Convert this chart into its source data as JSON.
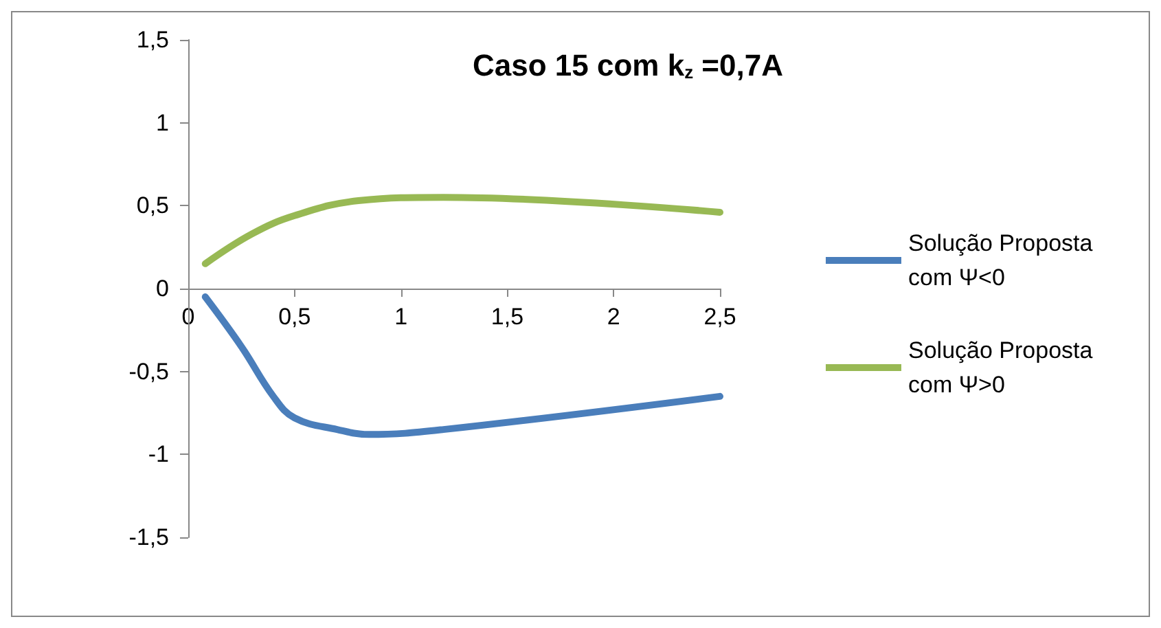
{
  "chart_data": {
    "type": "line",
    "title": "Caso 15 com k$_{z}$ =0,7A",
    "xlim": [
      0,
      2.5
    ],
    "xticks": [
      0,
      {
        "value": 0.5,
        "label": "0,5"
      },
      1,
      {
        "value": 1.5,
        "label": "1,5"
      },
      2,
      {
        "value": 2.5,
        "label": "2,5"
      }
    ],
    "ylim": [
      -1.5,
      1.5
    ],
    "yticks": [
      {
        "value": -1.5,
        "label": "-1,5"
      },
      -1,
      {
        "value": -0.5,
        "label": "-0,5"
      },
      0,
      {
        "value": 0.5,
        "label": "0,5"
      },
      1,
      {
        "value": 1.5,
        "label": "1,5"
      }
    ],
    "legend": "right",
    "marker": "none",
    "line_style": "solid",
    "series": [
      {
        "name": "Solução Proposta com Ψ<0",
        "color": "#4a7ebb",
        "x": [
          0.08,
          0.25,
          0.4,
          0.5,
          0.7,
          0.85,
          1.2,
          2.5
        ],
        "values": [
          -0.05,
          -0.35,
          -0.65,
          -0.78,
          -0.85,
          -0.88,
          -0.85,
          -0.65
        ]
      },
      {
        "name": "Solução Proposta com Ψ>0",
        "color": "#98b954",
        "x": [
          0.08,
          0.3,
          0.5,
          0.8,
          1.2,
          2.5
        ],
        "values": [
          0.15,
          0.33,
          0.44,
          0.53,
          0.55,
          0.46
        ]
      }
    ]
  }
}
